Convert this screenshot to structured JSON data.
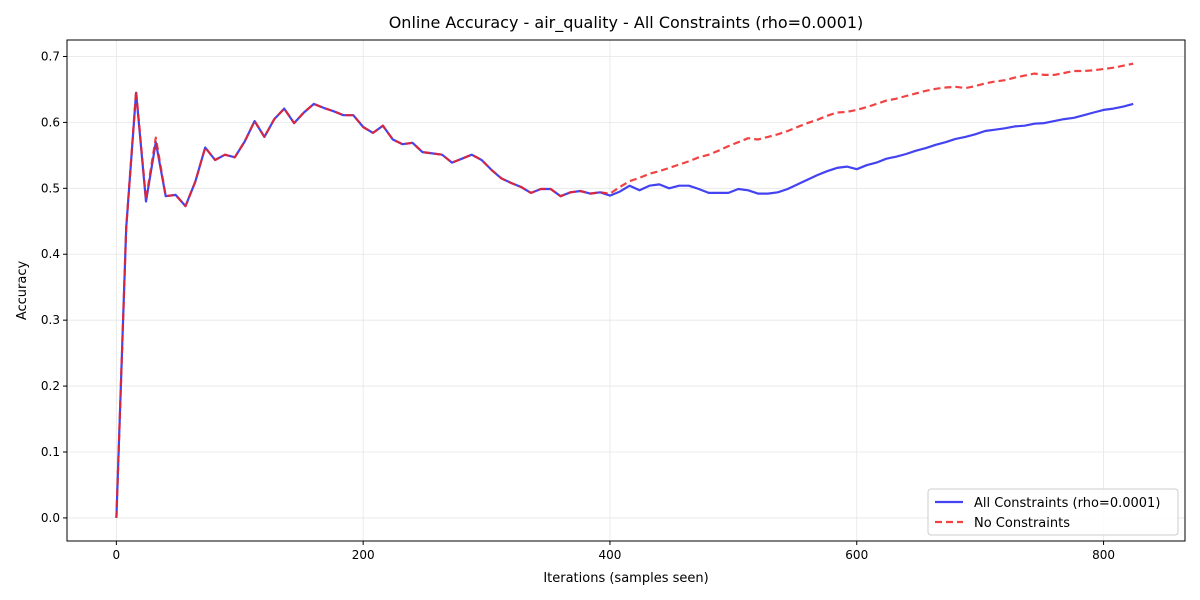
{
  "chart_data": {
    "type": "line",
    "title": "Online Accuracy - air_quality - All Constraints (rho=0.0001)",
    "xlabel": "Iterations (samples seen)",
    "ylabel": "Accuracy",
    "xlim": [
      -40,
      866
    ],
    "ylim": [
      -0.035,
      0.725
    ],
    "xticks": [
      0,
      200,
      400,
      600,
      800
    ],
    "yticks": [
      0.0,
      0.1,
      0.2,
      0.3,
      0.4,
      0.5,
      0.6,
      0.7
    ],
    "grid": true,
    "legend_position": "lower-right",
    "series": [
      {
        "name": "All Constraints (rho=0.0001)",
        "color": "#2222ee",
        "style": "solid",
        "x": [
          0,
          8,
          16,
          24,
          32,
          40,
          48,
          56,
          64,
          72,
          80,
          88,
          96,
          104,
          112,
          120,
          128,
          136,
          144,
          152,
          160,
          168,
          176,
          184,
          192,
          200,
          208,
          216,
          224,
          232,
          240,
          248,
          256,
          264,
          272,
          280,
          288,
          296,
          304,
          312,
          320,
          328,
          336,
          344,
          352,
          360,
          368,
          376,
          384,
          392,
          400,
          408,
          416,
          424,
          432,
          440,
          448,
          456,
          464,
          472,
          480,
          488,
          496,
          504,
          512,
          520,
          528,
          536,
          544,
          552,
          560,
          568,
          576,
          584,
          592,
          600,
          608,
          616,
          624,
          632,
          640,
          648,
          656,
          664,
          672,
          680,
          688,
          696,
          704,
          712,
          720,
          728,
          736,
          744,
          752,
          760,
          768,
          776,
          784,
          792,
          800,
          808,
          816,
          824
        ],
        "y": [
          0.0,
          0.44,
          0.645,
          0.48,
          0.57,
          0.488,
          0.49,
          0.473,
          0.51,
          0.562,
          0.543,
          0.551,
          0.547,
          0.571,
          0.602,
          0.578,
          0.605,
          0.621,
          0.599,
          0.615,
          0.628,
          0.622,
          0.617,
          0.611,
          0.611,
          0.593,
          0.584,
          0.595,
          0.574,
          0.567,
          0.569,
          0.555,
          0.553,
          0.551,
          0.539,
          0.545,
          0.551,
          0.543,
          0.528,
          0.515,
          0.508,
          0.502,
          0.493,
          0.499,
          0.499,
          0.488,
          0.494,
          0.496,
          0.492,
          0.494,
          0.489,
          0.495,
          0.504,
          0.497,
          0.504,
          0.506,
          0.5,
          0.504,
          0.504,
          0.499,
          0.493,
          0.493,
          0.493,
          0.499,
          0.497,
          0.492,
          0.492,
          0.494,
          0.499,
          0.506,
          0.513,
          0.52,
          0.526,
          0.531,
          0.533,
          0.529,
          0.535,
          0.539,
          0.545,
          0.548,
          0.552,
          0.557,
          0.561,
          0.566,
          0.57,
          0.575,
          0.578,
          0.582,
          0.587,
          0.589,
          0.591,
          0.594,
          0.595,
          0.598,
          0.599,
          0.602,
          0.605,
          0.607,
          0.611,
          0.615,
          0.619,
          0.621,
          0.624,
          0.628
        ]
      },
      {
        "name": "No Constraints",
        "color": "#ee2222",
        "style": "dashed",
        "x": [
          0,
          8,
          16,
          24,
          32,
          40,
          48,
          56,
          64,
          72,
          80,
          88,
          96,
          104,
          112,
          120,
          128,
          136,
          144,
          152,
          160,
          168,
          176,
          184,
          192,
          200,
          208,
          216,
          224,
          232,
          240,
          248,
          256,
          264,
          272,
          280,
          288,
          296,
          304,
          312,
          320,
          328,
          336,
          344,
          352,
          360,
          368,
          376,
          384,
          392,
          400,
          408,
          416,
          424,
          432,
          440,
          448,
          456,
          464,
          472,
          480,
          488,
          496,
          504,
          512,
          520,
          528,
          536,
          544,
          552,
          560,
          568,
          576,
          584,
          592,
          600,
          608,
          616,
          624,
          632,
          640,
          648,
          656,
          664,
          672,
          680,
          688,
          696,
          704,
          712,
          720,
          728,
          736,
          744,
          752,
          760,
          768,
          776,
          784,
          792,
          800,
          808,
          816,
          824
        ],
        "y": [
          0.0,
          0.44,
          0.648,
          0.483,
          0.577,
          0.488,
          0.49,
          0.473,
          0.51,
          0.562,
          0.543,
          0.551,
          0.547,
          0.571,
          0.602,
          0.578,
          0.605,
          0.621,
          0.599,
          0.615,
          0.628,
          0.622,
          0.617,
          0.611,
          0.611,
          0.593,
          0.584,
          0.595,
          0.574,
          0.567,
          0.569,
          0.555,
          0.553,
          0.551,
          0.539,
          0.545,
          0.551,
          0.543,
          0.528,
          0.515,
          0.508,
          0.502,
          0.493,
          0.499,
          0.499,
          0.488,
          0.494,
          0.496,
          0.492,
          0.494,
          0.492,
          0.502,
          0.511,
          0.516,
          0.522,
          0.526,
          0.531,
          0.536,
          0.541,
          0.547,
          0.551,
          0.557,
          0.564,
          0.57,
          0.576,
          0.574,
          0.578,
          0.582,
          0.587,
          0.593,
          0.599,
          0.604,
          0.61,
          0.615,
          0.616,
          0.619,
          0.623,
          0.628,
          0.633,
          0.636,
          0.64,
          0.644,
          0.648,
          0.651,
          0.653,
          0.654,
          0.652,
          0.655,
          0.659,
          0.662,
          0.664,
          0.668,
          0.671,
          0.674,
          0.672,
          0.672,
          0.675,
          0.678,
          0.678,
          0.679,
          0.681,
          0.683,
          0.686,
          0.689
        ]
      }
    ]
  }
}
